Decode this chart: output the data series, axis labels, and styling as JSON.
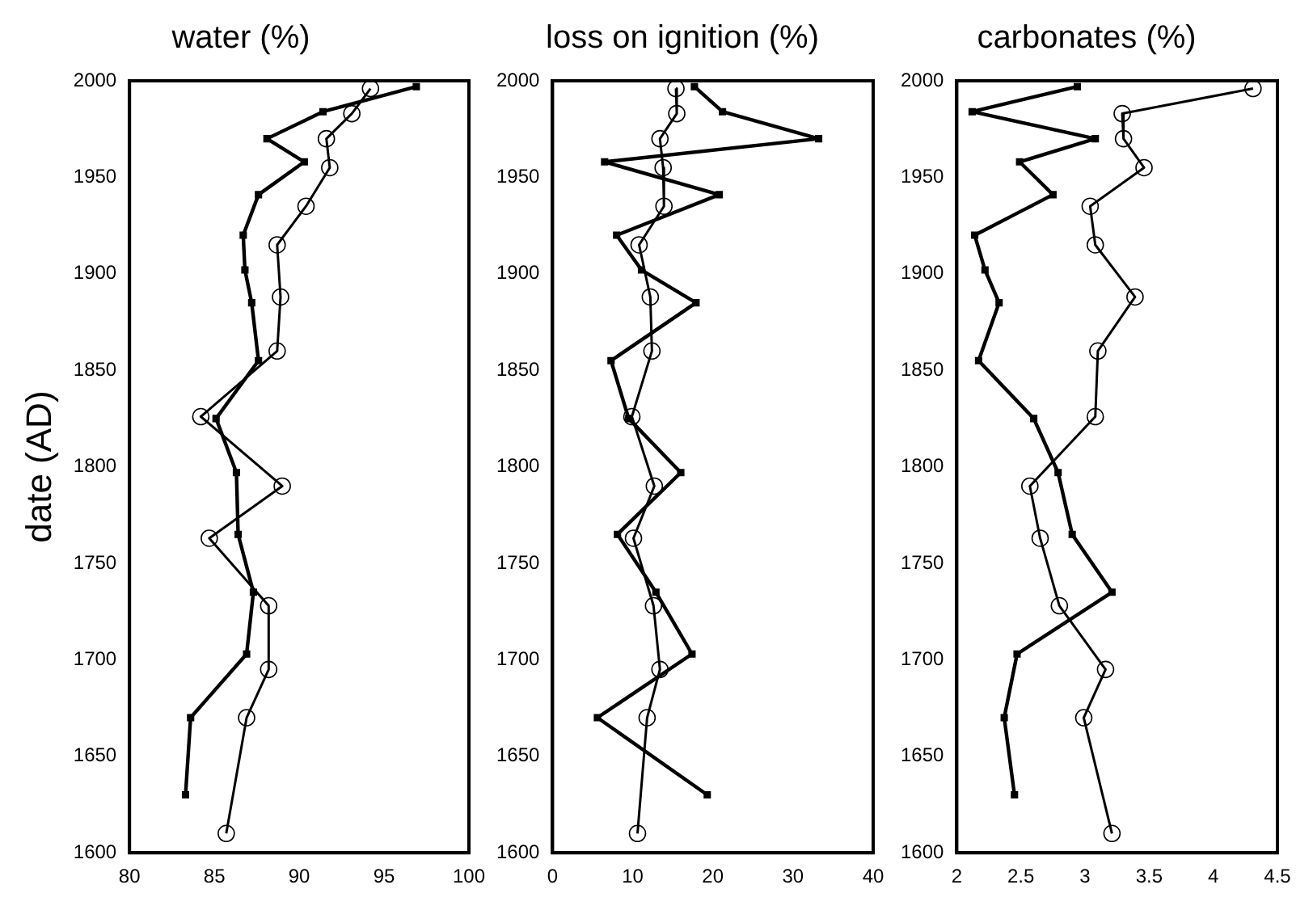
{
  "chart_data": [
    {
      "type": "line",
      "title": "water (%)",
      "ylabel": "date (AD)",
      "xlim": [
        80,
        100
      ],
      "xticks": [
        80,
        85,
        90,
        95,
        100
      ],
      "ylim": [
        1600,
        2000
      ],
      "yticks": [
        1600,
        1650,
        1700,
        1750,
        1800,
        1850,
        1900,
        1950,
        2000
      ],
      "grid": false,
      "legend": false,
      "series": [
        {
          "color": "#000000",
          "marker": "square",
          "x": [
            96.9,
            91.4,
            88.1,
            90.3,
            87.6,
            86.7,
            86.8,
            87.2,
            87.6,
            85.1,
            86.3,
            86.4,
            87.3,
            86.9,
            83.6,
            83.3
          ],
          "values": [
            1997,
            1984,
            1970,
            1958,
            1941,
            1920,
            1902,
            1885,
            1855,
            1825,
            1797,
            1765,
            1735,
            1703,
            1670,
            1630
          ]
        },
        {
          "color": "#000000",
          "marker": "circle",
          "x": [
            94.2,
            93.1,
            91.6,
            91.8,
            90.4,
            88.7,
            88.9,
            88.7,
            84.2,
            89.0,
            84.7,
            88.2,
            88.2,
            86.9,
            85.7
          ],
          "values": [
            1996,
            1983,
            1970,
            1955,
            1935,
            1915,
            1888,
            1860,
            1826,
            1790,
            1763,
            1728,
            1695,
            1670,
            1610
          ]
        }
      ]
    },
    {
      "type": "line",
      "title": "loss on ignition (%)",
      "xlim": [
        0,
        40
      ],
      "xticks": [
        0,
        10,
        20,
        30,
        40
      ],
      "ylim": [
        1600,
        2000
      ],
      "yticks": [
        1600,
        1650,
        1700,
        1750,
        1800,
        1850,
        1900,
        1950,
        2000
      ],
      "grid": false,
      "legend": false,
      "series": [
        {
          "color": "#000000",
          "marker": "square",
          "x": [
            17.7,
            21.2,
            33.2,
            6.5,
            20.8,
            8.0,
            11.1,
            17.9,
            7.3,
            9.5,
            16.0,
            8.1,
            12.9,
            17.4,
            5.6,
            19.3
          ],
          "values": [
            1997,
            1984,
            1970,
            1958,
            1941,
            1920,
            1902,
            1885,
            1855,
            1825,
            1797,
            1765,
            1735,
            1703,
            1670,
            1630
          ]
        },
        {
          "color": "#000000",
          "marker": "circle",
          "x": [
            15.4,
            15.5,
            13.4,
            13.8,
            13.9,
            10.8,
            12.2,
            12.4,
            9.9,
            12.7,
            10.1,
            12.6,
            13.4,
            11.8,
            10.6
          ],
          "values": [
            1996,
            1983,
            1970,
            1955,
            1935,
            1915,
            1888,
            1860,
            1826,
            1790,
            1763,
            1728,
            1695,
            1670,
            1610
          ]
        }
      ]
    },
    {
      "type": "line",
      "title": "carbonates (%)",
      "xlim": [
        2,
        4.5
      ],
      "xticks": [
        2,
        2.5,
        3,
        3.5,
        4,
        4.5
      ],
      "ylim": [
        1600,
        2000
      ],
      "yticks": [
        1600,
        1650,
        1700,
        1750,
        1800,
        1850,
        1900,
        1950,
        2000
      ],
      "grid": false,
      "legend": false,
      "series": [
        {
          "color": "#000000",
          "marker": "square",
          "x": [
            2.94,
            2.12,
            3.08,
            2.49,
            2.75,
            2.14,
            2.22,
            2.33,
            2.17,
            2.6,
            2.79,
            2.9,
            3.21,
            2.47,
            2.37,
            2.45
          ],
          "values": [
            1997,
            1984,
            1970,
            1958,
            1941,
            1920,
            1902,
            1885,
            1855,
            1825,
            1797,
            1765,
            1735,
            1703,
            1670,
            1630
          ]
        },
        {
          "color": "#000000",
          "marker": "circle",
          "x": [
            4.31,
            3.29,
            3.3,
            3.46,
            3.04,
            3.08,
            3.39,
            3.1,
            3.08,
            2.57,
            2.65,
            2.8,
            3.16,
            2.99,
            3.21
          ],
          "values": [
            1996,
            1983,
            1970,
            1955,
            1935,
            1915,
            1888,
            1860,
            1826,
            1790,
            1763,
            1728,
            1695,
            1670,
            1610
          ]
        }
      ]
    }
  ]
}
